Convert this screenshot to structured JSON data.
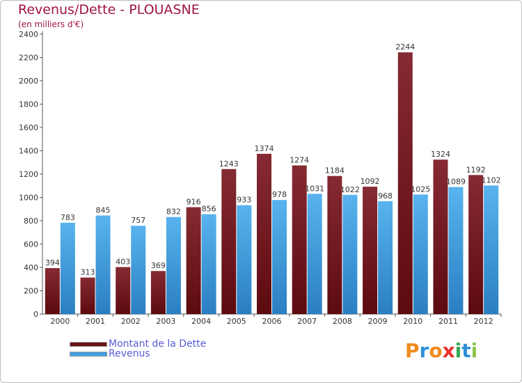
{
  "title": "Revenus/Dette - PLOUASNE",
  "subtitle": "(en milliers d'€)",
  "chart_data": {
    "type": "bar",
    "title": "Revenus/Dette - PLOUASNE",
    "ylabel": "(en milliers d'€)",
    "xlabel": "",
    "ylim": [
      0,
      2400
    ],
    "yticks": [
      0,
      200,
      400,
      600,
      800,
      1000,
      1200,
      1400,
      1600,
      1800,
      2000,
      2200,
      2400
    ],
    "grid": false,
    "legend_position": "bottom-left",
    "categories": [
      "2000",
      "2001",
      "2002",
      "2003",
      "2004",
      "2005",
      "2006",
      "2007",
      "2008",
      "2009",
      "2010",
      "2011",
      "2012"
    ],
    "series": [
      {
        "name": "Montant de la Dette",
        "color": "#7a1c22",
        "values": [
          394,
          313,
          403,
          369,
          916,
          1243,
          1374,
          1274,
          1184,
          1092,
          2244,
          1324,
          1192
        ]
      },
      {
        "name": "Revenus",
        "color": "#3f9ee0",
        "values": [
          783,
          845,
          757,
          832,
          856,
          933,
          978,
          1031,
          1022,
          968,
          1025,
          1089,
          1102
        ]
      }
    ]
  },
  "legend": {
    "debt_label": "Montant de la Dette",
    "revenue_label": "Revenus"
  },
  "logo": {
    "letters": [
      "P",
      "r",
      "o",
      "x",
      "i",
      "t",
      "i"
    ],
    "colors": [
      "#f28a1e",
      "#2f8fd8",
      "#f28a1e",
      "#e8312a",
      "#2fa84f",
      "#2f8fd8",
      "#8bc34a"
    ]
  }
}
